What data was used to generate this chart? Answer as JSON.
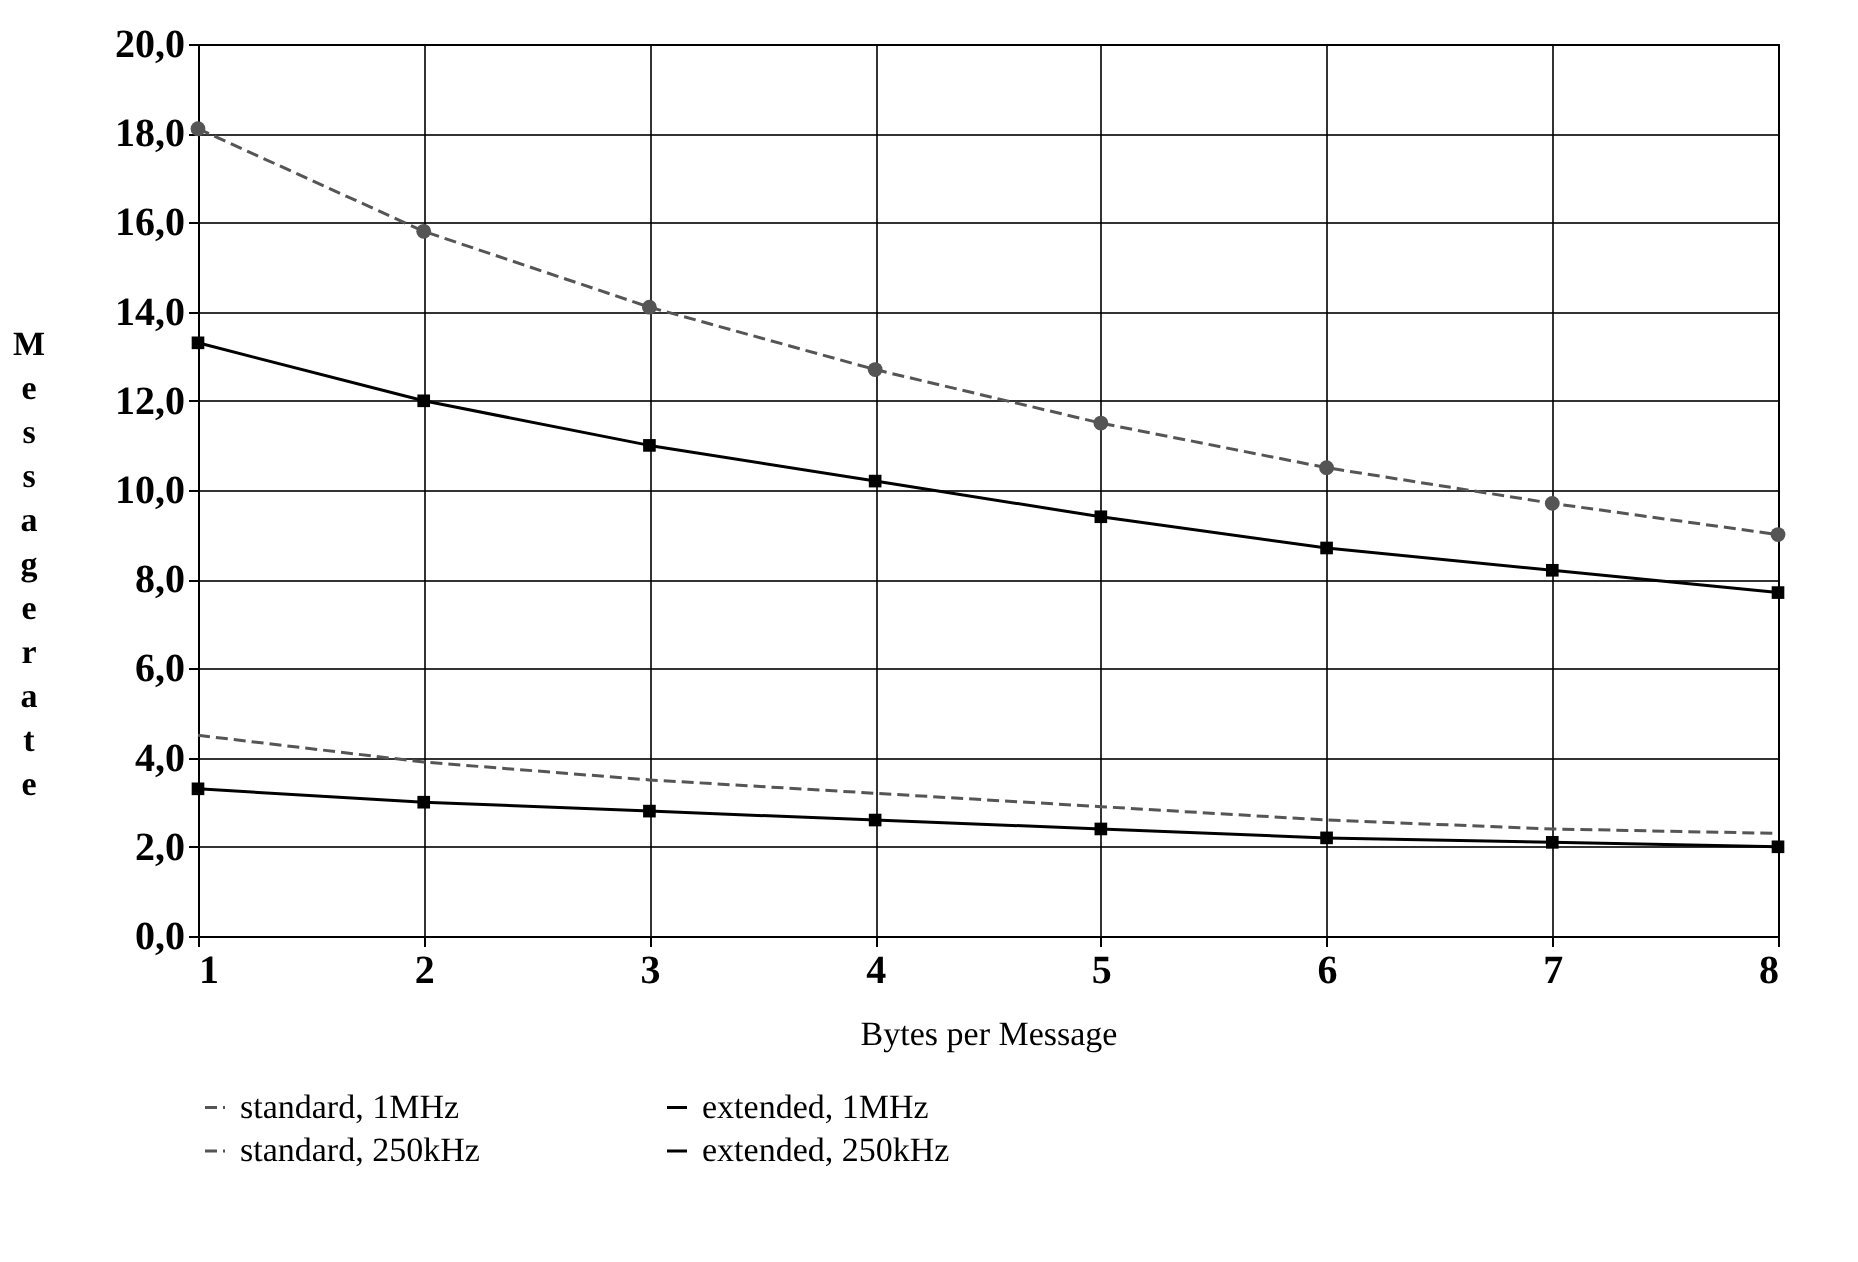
{
  "chart_data": {
    "type": "line",
    "xlabel": "Bytes per Message",
    "ylabel": "Message rate",
    "x": [
      1,
      2,
      3,
      4,
      5,
      6,
      7,
      8
    ],
    "xlim": [
      1,
      8
    ],
    "xticks": [
      {
        "value": 1,
        "label": "1"
      },
      {
        "value": 2,
        "label": "2"
      },
      {
        "value": 3,
        "label": "3"
      },
      {
        "value": 4,
        "label": "4"
      },
      {
        "value": 5,
        "label": "5"
      },
      {
        "value": 6,
        "label": "6"
      },
      {
        "value": 7,
        "label": "7"
      },
      {
        "value": 8,
        "label": "8"
      }
    ],
    "ylim": [
      0,
      20
    ],
    "yticks": [
      {
        "value": 0,
        "label": "0,0"
      },
      {
        "value": 2,
        "label": "2,0"
      },
      {
        "value": 4,
        "label": "4,0"
      },
      {
        "value": 6,
        "label": "6,0"
      },
      {
        "value": 8,
        "label": "8,0"
      },
      {
        "value": 10,
        "label": "10,0"
      },
      {
        "value": 12,
        "label": "12,0"
      },
      {
        "value": 14,
        "label": "14,0"
      },
      {
        "value": 16,
        "label": "16,0"
      },
      {
        "value": 18,
        "label": "18,0"
      },
      {
        "value": 20,
        "label": "20,0"
      }
    ],
    "grid": true,
    "legend": "bottom",
    "series": [
      {
        "name": "standard, 1MHz",
        "color": "#555555",
        "marker": "circle",
        "line_style": "dashed",
        "values": [
          18.1,
          15.8,
          14.1,
          12.7,
          11.5,
          10.5,
          9.7,
          9.0
        ]
      },
      {
        "name": "extended, 1MHz",
        "color": "#000000",
        "marker": "square",
        "line_style": "solid",
        "values": [
          13.3,
          12.0,
          11.0,
          10.2,
          9.4,
          8.7,
          8.2,
          7.7
        ]
      },
      {
        "name": "standard, 250kHz",
        "color": "#555555",
        "marker": "none",
        "line_style": "dashed",
        "values": [
          4.5,
          3.9,
          3.5,
          3.2,
          2.9,
          2.6,
          2.4,
          2.3
        ]
      },
      {
        "name": "extended, 250kHz",
        "color": "#000000",
        "marker": "square",
        "line_style": "solid",
        "values": [
          3.3,
          3.0,
          2.8,
          2.6,
          2.4,
          2.2,
          2.1,
          2.0
        ]
      }
    ]
  }
}
